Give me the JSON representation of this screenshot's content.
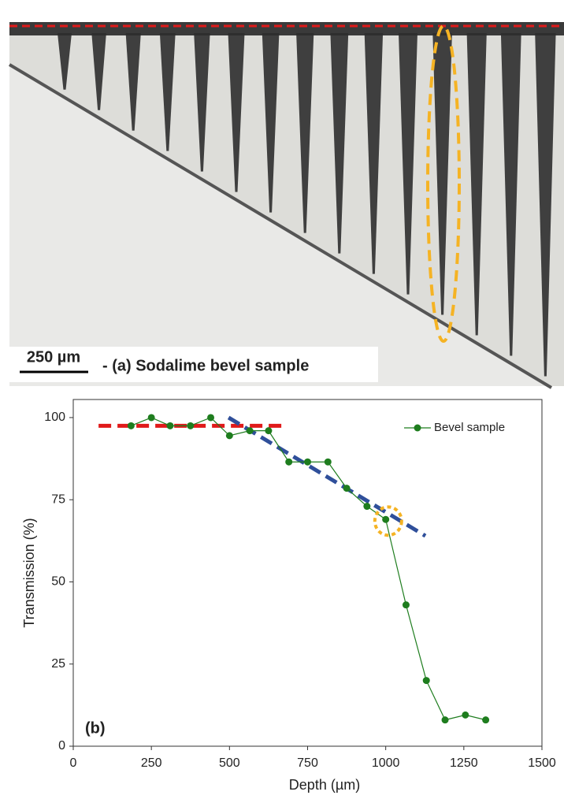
{
  "photo": {
    "scale_label": "250 µm",
    "caption": "- (a) Sodalime bevel sample"
  },
  "chart_data": {
    "type": "line",
    "x_label": "Depth (µm)",
    "y_label": "Transmission (%)",
    "annotation": "(b)",
    "x": [
      185,
      250,
      310,
      375,
      440,
      500,
      565,
      625,
      690,
      750,
      815,
      875,
      940,
      1000,
      1065,
      1130,
      1190,
      1255,
      1320
    ],
    "series": [
      {
        "name": "Bevel sample",
        "color": "#1e7d1e",
        "values": [
          97.5,
          100,
          97.5,
          97.5,
          100,
          94.5,
          96,
          96,
          86.5,
          86.5,
          86.5,
          78.5,
          73,
          69,
          43,
          20,
          8,
          9.5,
          8
        ]
      }
    ],
    "xlim": [
      0,
      1500
    ],
    "ylim": [
      0,
      105.5
    ],
    "xticks": [
      0,
      250,
      500,
      750,
      1000,
      1250,
      1500
    ],
    "yticks": [
      0,
      25,
      50,
      75,
      100
    ],
    "legend": "top right",
    "reference_lines": [
      {
        "color": "#e01a1a",
        "x": [
          81,
          673
        ],
        "y": [
          97.5,
          97.5
        ]
      },
      {
        "color": "#2f4f9a",
        "x": [
          497,
          1127
        ],
        "y": [
          100,
          64
        ]
      }
    ],
    "highlight": {
      "color": "#f5b324",
      "x": 1008,
      "y": 68.5
    }
  }
}
